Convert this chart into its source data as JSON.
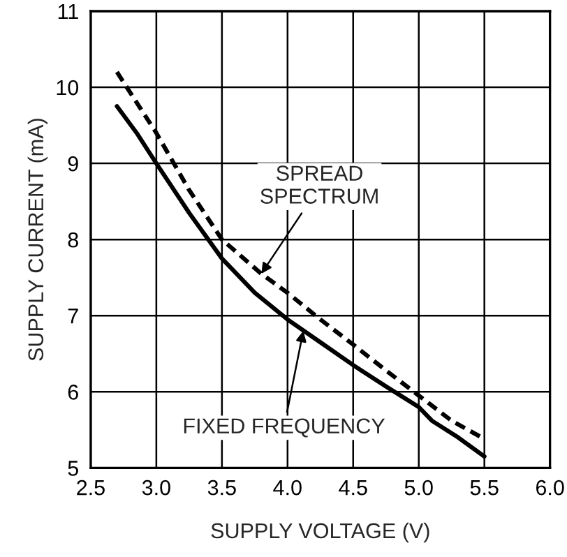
{
  "chart_data": {
    "type": "line",
    "xlabel": "SUPPLY VOLTAGE (V)",
    "ylabel": "SUPPLY CURRENT (mA)",
    "xlim": [
      2.5,
      6.0
    ],
    "xticks": [
      {
        "value": 2.5,
        "label": "2.5"
      },
      {
        "value": 3.0,
        "label": "3.0"
      },
      {
        "value": 3.5,
        "label": "3.5"
      },
      {
        "value": 4.0,
        "label": "4.0"
      },
      {
        "value": 4.5,
        "label": "4.5"
      },
      {
        "value": 5.0,
        "label": "5.0"
      },
      {
        "value": 5.5,
        "label": "5.5"
      },
      {
        "value": 6.0,
        "label": "6.0"
      }
    ],
    "ylim": [
      5,
      11
    ],
    "yticks": [
      5,
      6,
      7,
      8,
      9,
      10,
      11
    ],
    "grid": true,
    "series": [
      {
        "color": "#000000",
        "line_style": "solid",
        "x": [
          2.7,
          2.85,
          3.0,
          3.25,
          3.5,
          3.75,
          4.0,
          4.25,
          4.5,
          4.75,
          5.0,
          5.1,
          5.3,
          5.5
        ],
        "values": [
          9.75,
          9.4,
          9.0,
          8.35,
          7.75,
          7.3,
          6.95,
          6.65,
          6.35,
          6.07,
          5.8,
          5.62,
          5.4,
          5.15
        ]
      },
      {
        "color": "#000000",
        "line_style": "dashed",
        "x": [
          2.7,
          2.85,
          3.0,
          3.25,
          3.5,
          3.8,
          4.0,
          4.25,
          4.5,
          4.75,
          5.0,
          5.25,
          5.5
        ],
        "values": [
          10.2,
          9.8,
          9.4,
          8.65,
          8.0,
          7.55,
          7.3,
          6.95,
          6.62,
          6.28,
          5.95,
          5.62,
          5.38
        ]
      }
    ],
    "annotations": [
      {
        "text": "SPREAD\nSPECTRUM",
        "x": 3.8,
        "y": 7.55
      },
      {
        "text": "FIXED FREQUENCY",
        "x": 4.12,
        "y": 6.8
      }
    ]
  }
}
